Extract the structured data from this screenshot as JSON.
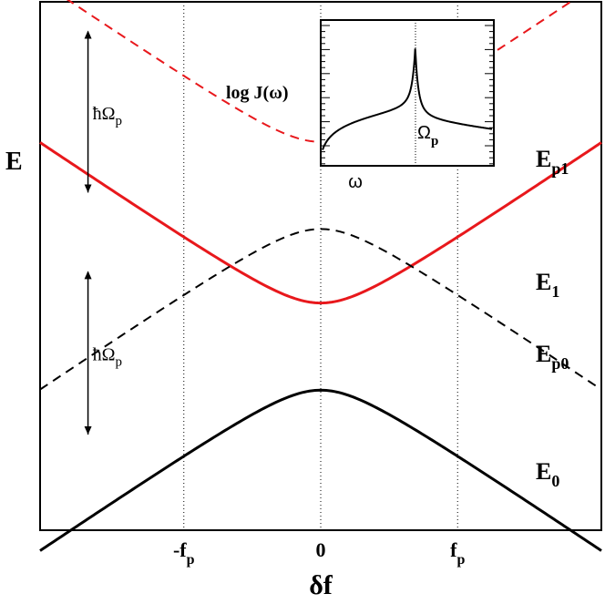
{
  "chart_data": {
    "type": "line",
    "ylabel": "E",
    "xlabel": "δf",
    "x_ticks": [
      "-f",
      "0",
      "f"
    ],
    "x_tick_subscript": "p",
    "x_tick_values": [
      -1,
      0,
      1
    ],
    "xlim": [
      -2.05,
      2.05
    ],
    "ylim": [
      0,
      10
    ],
    "series": [
      {
        "name": "E_p1",
        "label_main": "E",
        "label_sub": "p1",
        "color": "#e8181c",
        "style": "dashed",
        "offset": 6.75,
        "slope": 1.75,
        "gap": 0.6,
        "sign": 1
      },
      {
        "name": "E_1",
        "label_main": "E",
        "label_sub": "1",
        "color": "#e8181c",
        "style": "solid",
        "offset": 3.7,
        "slope": 1.75,
        "gap": 0.6,
        "sign": 1
      },
      {
        "name": "E_p0",
        "label_main": "E",
        "label_sub": "p0",
        "color": "#000000",
        "style": "dashed",
        "offset": 6.3,
        "slope": 1.75,
        "gap": 0.6,
        "sign": -1
      },
      {
        "name": "E_0",
        "label_main": "E",
        "label_sub": "0",
        "color": "#000000",
        "style": "solid",
        "offset": 3.25,
        "slope": 1.75,
        "gap": 0.6,
        "sign": -1
      }
    ],
    "annotations": [
      {
        "text": "ħΩ",
        "sub": "p",
        "x": -1.7,
        "y_from": 9.44,
        "y_to": 6.39
      },
      {
        "text": "ħΩ",
        "sub": "p",
        "x": -1.7,
        "y_from": 4.89,
        "y_to": 1.81
      }
    ],
    "inset": {
      "ylabel": "log J(ω)",
      "xlabel": "ω",
      "peak_label_main": "Ω",
      "peak_label_sub": "p",
      "peak_x": 0.6
    }
  }
}
